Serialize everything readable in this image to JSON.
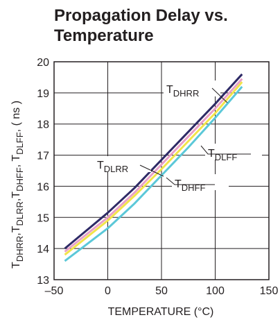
{
  "chart_data": {
    "type": "line",
    "title_lines": [
      "Propagation Delay vs.",
      "Temperature"
    ],
    "xlabel": "TEMPERATURE (°C)",
    "ylabel": "T_DHRR, T_DLRR, T_DHFF, T_DLFF ( ns )",
    "xlim": [
      -50,
      150
    ],
    "ylim": [
      13,
      20
    ],
    "xticks": [
      -50,
      0,
      50,
      100,
      150
    ],
    "yticks": [
      13,
      14,
      15,
      16,
      17,
      18,
      19,
      20
    ],
    "grid": true,
    "legend": "inline labels",
    "series": [
      {
        "name": "TDHRR",
        "color": "#2e2a66",
        "x": [
          -40,
          0,
          25,
          50,
          75,
          100,
          125
        ],
        "y": [
          14.0,
          15.15,
          15.95,
          16.85,
          17.75,
          18.65,
          19.6
        ]
      },
      {
        "name": "TDLRR",
        "color": "#e8a0c8",
        "x": [
          -40,
          0,
          25,
          50,
          75,
          100,
          125
        ],
        "y": [
          13.9,
          15.0,
          15.8,
          16.7,
          17.6,
          18.5,
          19.45
        ]
      },
      {
        "name": "TDLFF",
        "color": "#f2e44a",
        "x": [
          -40,
          0,
          25,
          50,
          75,
          100,
          125
        ],
        "y": [
          13.8,
          14.9,
          15.7,
          16.55,
          17.45,
          18.35,
          19.35
        ]
      },
      {
        "name": "TDHFF",
        "color": "#5bc8d8",
        "x": [
          -40,
          0,
          25,
          50,
          75,
          100,
          125
        ],
        "y": [
          13.6,
          14.65,
          15.45,
          16.35,
          17.25,
          18.2,
          19.2
        ]
      }
    ],
    "annotations": [
      {
        "series": "TDHRR",
        "base": "T",
        "sub": "DHRR"
      },
      {
        "series": "TDLRR",
        "base": "T",
        "sub": "DLRR"
      },
      {
        "series": "TDLFF",
        "base": "T",
        "sub": "DLFF"
      },
      {
        "series": "TDHFF",
        "base": "T",
        "sub": "DHFF"
      }
    ],
    "ylabel_parts": [
      {
        "base": "T",
        "sub": "DHRR"
      },
      {
        "base": ",T",
        "sub": "DLRR"
      },
      {
        "base": ",T",
        "sub": "DHFF"
      },
      {
        "base": ", T",
        "sub": "DLFF"
      },
      {
        "base": ", ( ns )",
        "sub": ""
      }
    ]
  }
}
